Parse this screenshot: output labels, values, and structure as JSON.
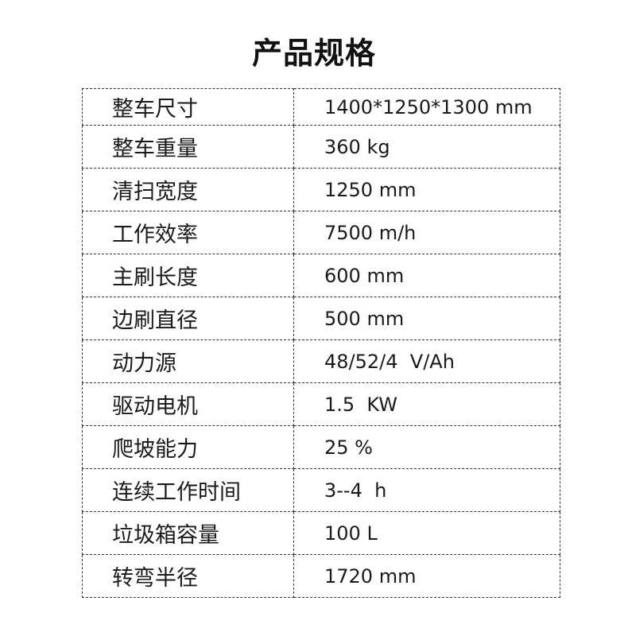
{
  "title": "产品规格",
  "specs": [
    {
      "label": "整车尺寸",
      "value": "1400*1250*1300 mm"
    },
    {
      "label": "整车重量",
      "value": "360 kg"
    },
    {
      "label": "清扫宽度",
      "value": "1250 mm"
    },
    {
      "label": "工作效率",
      "value": "7500 m/h"
    },
    {
      "label": "主刷长度",
      "value": "600 mm"
    },
    {
      "label": "边刷直径",
      "value": "500 mm"
    },
    {
      "label": "动力源",
      "value": "48/52/4  V/Ah"
    },
    {
      "label": "驱动电机",
      "value": "1.5  KW"
    },
    {
      "label": "爬坡能力",
      "value": "25 %"
    },
    {
      "label": "连续工作时间",
      "value": "3--4  h"
    },
    {
      "label": "垃圾箱容量",
      "value": "100 L"
    },
    {
      "label": "转弯半径",
      "value": "1720 mm"
    }
  ]
}
